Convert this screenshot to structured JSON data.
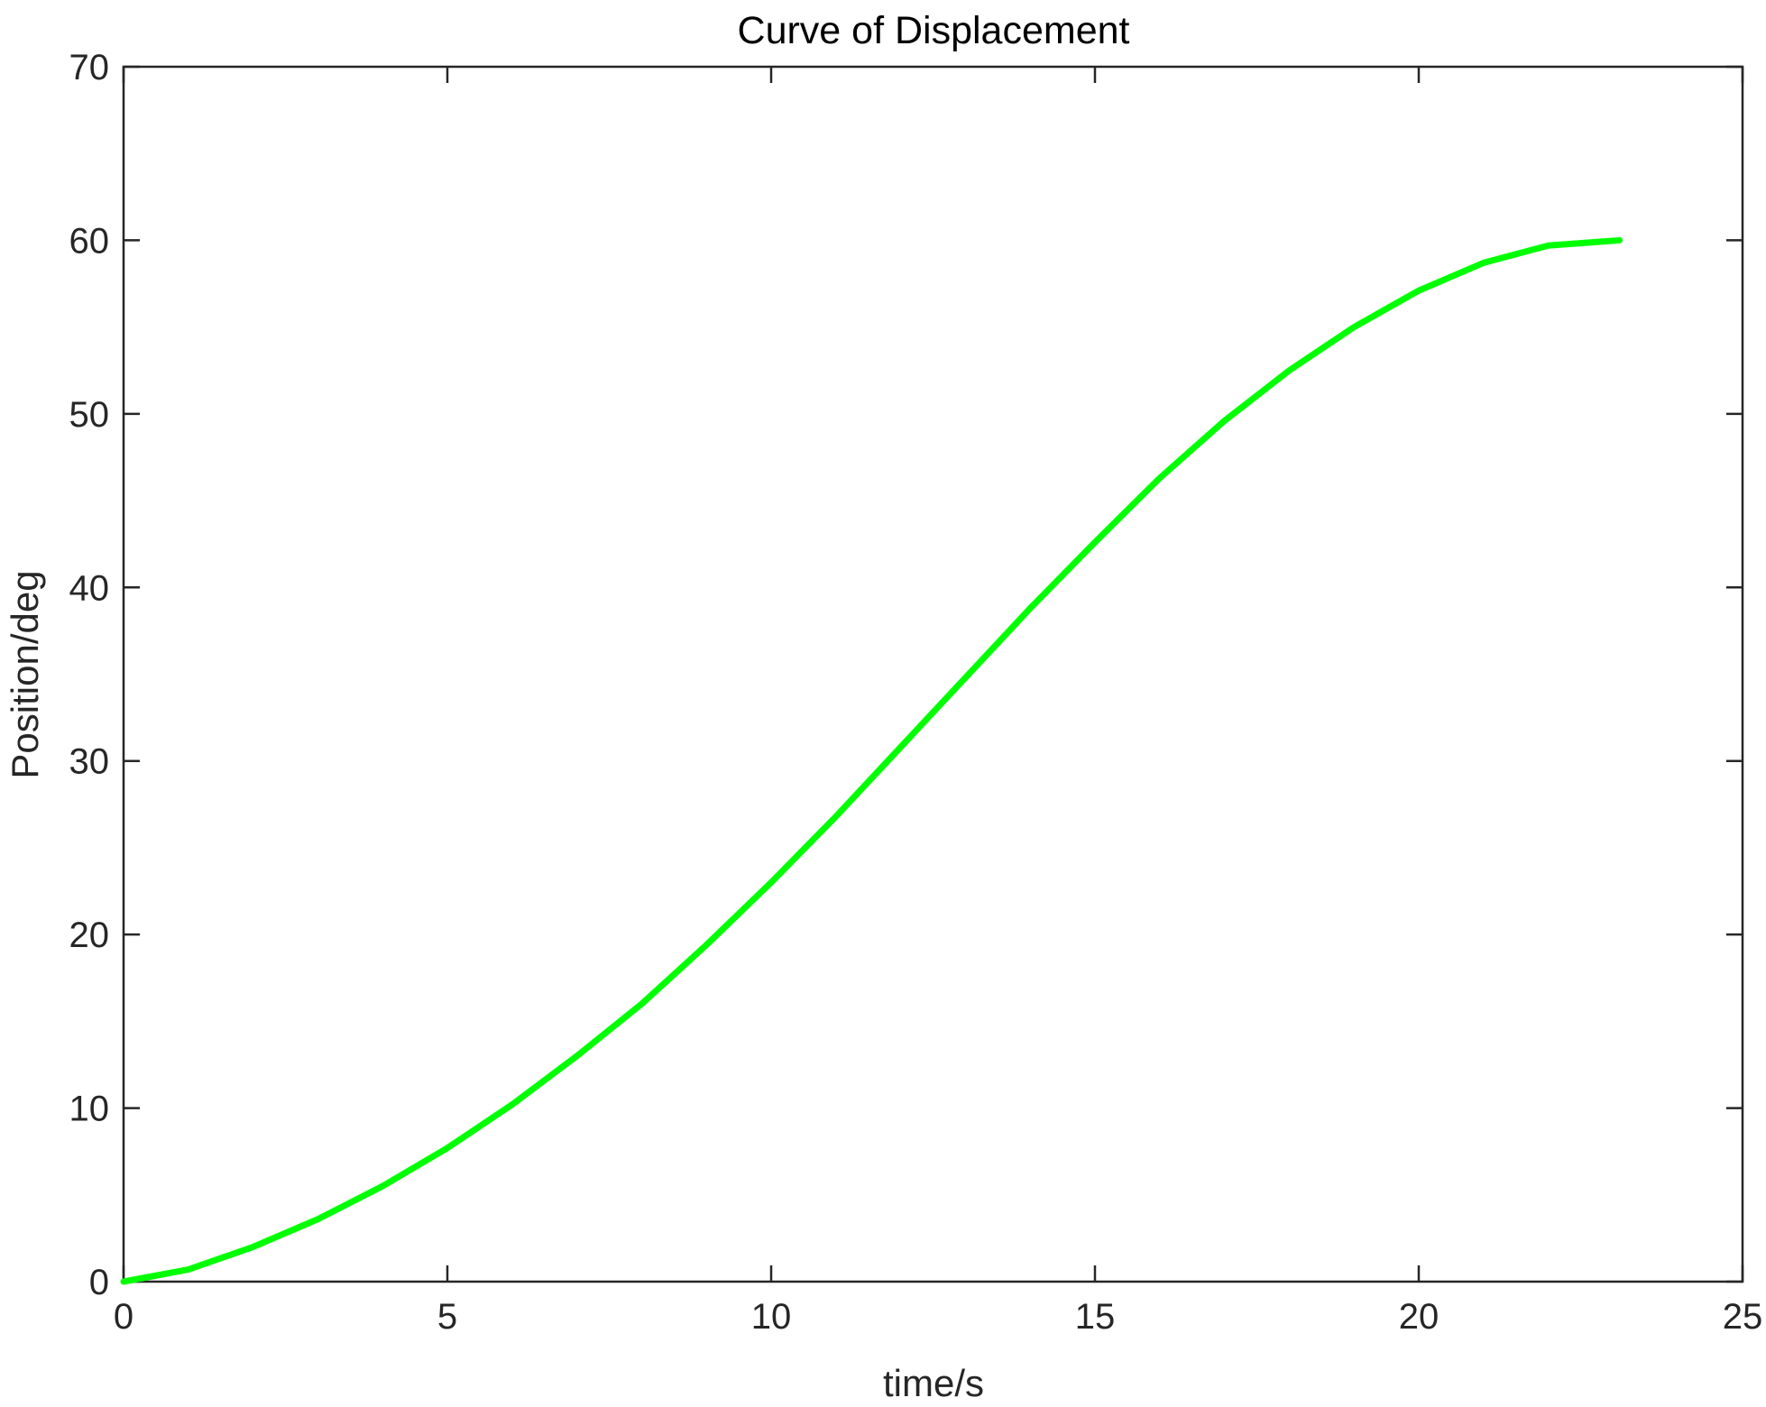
{
  "chart_data": {
    "type": "line",
    "title": "Curve of Displacement",
    "xlabel": "time/s",
    "ylabel": "Position/deg",
    "xlim": [
      0,
      25
    ],
    "ylim": [
      0,
      70
    ],
    "xticks": [
      0,
      5,
      10,
      15,
      20,
      25
    ],
    "yticks": [
      0,
      10,
      20,
      30,
      40,
      50,
      60,
      70
    ],
    "xtick_labels": [
      "0",
      "5",
      "10",
      "15",
      "20",
      "25"
    ],
    "ytick_labels": [
      "0",
      "10",
      "20",
      "30",
      "40",
      "50",
      "60",
      "70"
    ],
    "grid": false,
    "legend": "none",
    "box": true,
    "series": [
      {
        "color": "#00ff00",
        "x": [
          0,
          1,
          2,
          3,
          4,
          5,
          6,
          7,
          8,
          9,
          10,
          11,
          12,
          13,
          14,
          15,
          16,
          17,
          18,
          19,
          20,
          21,
          22,
          23.1
        ],
        "y": [
          0,
          0.7,
          2.0,
          3.6,
          5.5,
          7.7,
          10.2,
          13.0,
          16.0,
          19.4,
          23.0,
          26.8,
          30.8,
          34.8,
          38.8,
          42.6,
          46.3,
          49.6,
          52.5,
          55.0,
          57.1,
          58.7,
          59.7,
          60.0
        ]
      }
    ]
  }
}
